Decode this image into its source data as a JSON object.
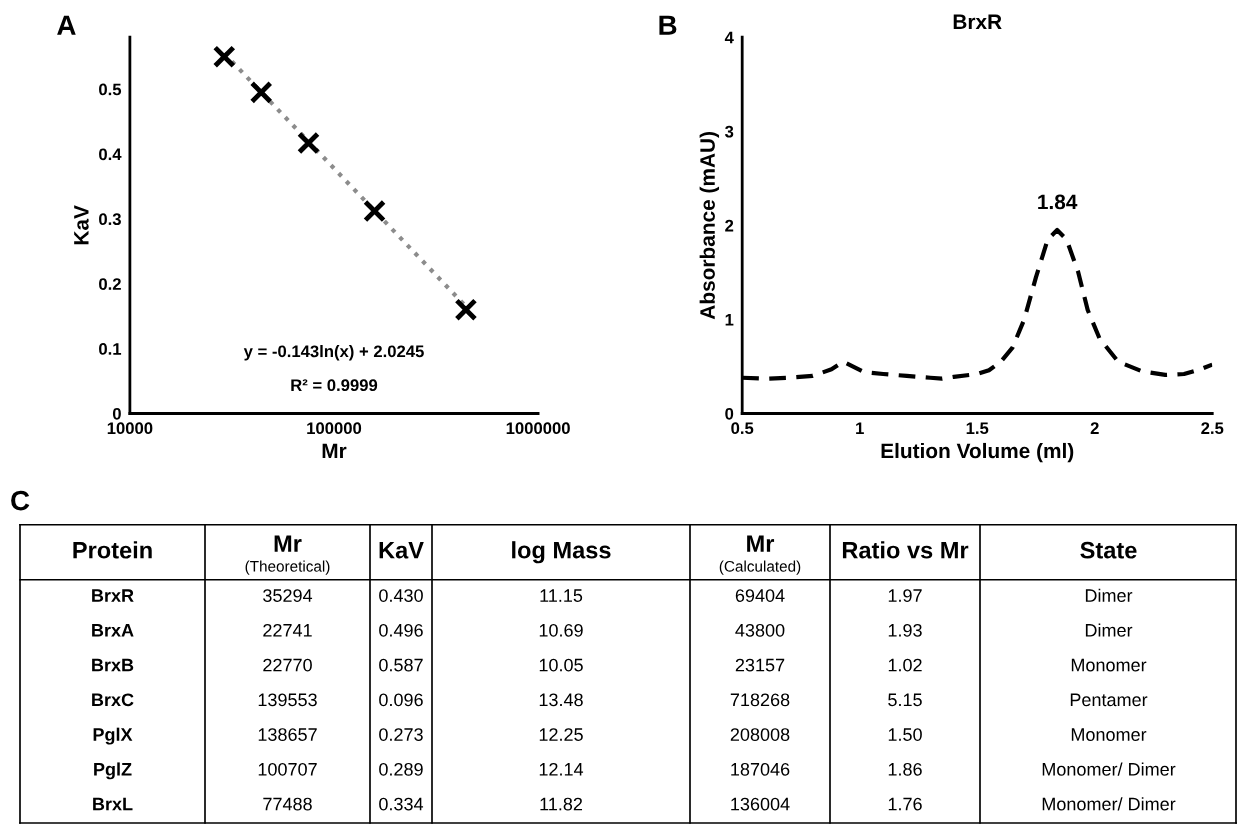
{
  "chart_data": [
    {
      "type": "scatter",
      "annotations": [
        "A",
        "y = -0.143ln(x) + 2.0245",
        "R² = 0.9999"
      ],
      "xlabel": "Mr",
      "ylabel": "KaV",
      "log": "x",
      "xlim": [
        10000,
        1000000
      ],
      "xticks": [
        10000,
        100000,
        1000000
      ],
      "ylim": [
        0,
        0.58
      ],
      "yticks": [
        0,
        0.1,
        0.2,
        0.3,
        0.4,
        0.5
      ],
      "grid": false,
      "legend": false,
      "series": [
        {
          "type": "scatter",
          "marker": "cross",
          "color": "#000000",
          "x": [
            29000,
            44000,
            75000,
            158000,
            443000
          ],
          "values": [
            0.55,
            0.495,
            0.417,
            0.312,
            0.16
          ]
        },
        {
          "type": "line",
          "line_style": "dotted",
          "color": "#8c8c8c",
          "x": [
            29000,
            443000
          ],
          "values": [
            0.555,
            0.165
          ]
        }
      ]
    },
    {
      "type": "line",
      "title": "BrxR",
      "annotations": [
        "B",
        {
          "text": "1.84",
          "x": 1.84,
          "y": 1.95
        }
      ],
      "xlabel": "Elution Volume (ml)",
      "ylabel": "Absorbance (mAU)",
      "xlim": [
        0.5,
        2.5
      ],
      "xticks": [
        0.5,
        1,
        1.5,
        2,
        2.5
      ],
      "ylim": [
        0,
        4
      ],
      "yticks": [
        0,
        1,
        2,
        3,
        4
      ],
      "grid": false,
      "legend": false,
      "line_style": "dashed",
      "marker": "none",
      "series": [
        {
          "color": "#000000",
          "x": [
            0.5,
            0.6,
            0.7,
            0.8,
            0.88,
            0.93,
            0.97,
            1.02,
            1.1,
            1.2,
            1.3,
            1.35,
            1.4,
            1.5,
            1.55,
            1.6,
            1.65,
            1.7,
            1.75,
            1.8,
            1.84,
            1.88,
            1.93,
            1.97,
            2.02,
            2.1,
            2.2,
            2.3,
            2.38,
            2.45,
            2.5
          ],
          "values": [
            0.38,
            0.37,
            0.38,
            0.4,
            0.47,
            0.55,
            0.5,
            0.44,
            0.42,
            0.4,
            0.38,
            0.37,
            0.39,
            0.42,
            0.46,
            0.55,
            0.7,
            1.0,
            1.45,
            1.85,
            1.95,
            1.85,
            1.5,
            1.1,
            0.8,
            0.55,
            0.45,
            0.41,
            0.42,
            0.47,
            0.52
          ]
        }
      ]
    },
    {
      "type": "other",
      "title": "C",
      "categories": [
        "Protein",
        "Mr\n(Theoretical)",
        "KaV",
        "log Mass",
        "Mr\n(Calculated)",
        "Ratio vs Mr",
        "State"
      ],
      "annotations": [
        "BrxR",
        "35294",
        "0.430",
        "11.15",
        "69404",
        "1.97",
        "Dimer",
        "BrxA",
        "22741",
        "0.496",
        "10.69",
        "43800",
        "1.93",
        "Dimer",
        "BrxB",
        "22770",
        "0.587",
        "10.05",
        "23157",
        "1.02",
        "Monomer",
        "BrxC",
        "139553",
        "0.096",
        "13.48",
        "718268",
        "5.15",
        "Pentamer",
        "PglX",
        "138657",
        "0.273",
        "12.25",
        "208008",
        "1.50",
        "Monomer",
        "PglZ",
        "100707",
        "0.289",
        "12.14",
        "187046",
        "1.86",
        "Monomer/ Dimer",
        "BrxL",
        "77488",
        "0.334",
        "11.82",
        "136004",
        "1.76",
        "Monomer/ Dimer"
      ]
    }
  ]
}
